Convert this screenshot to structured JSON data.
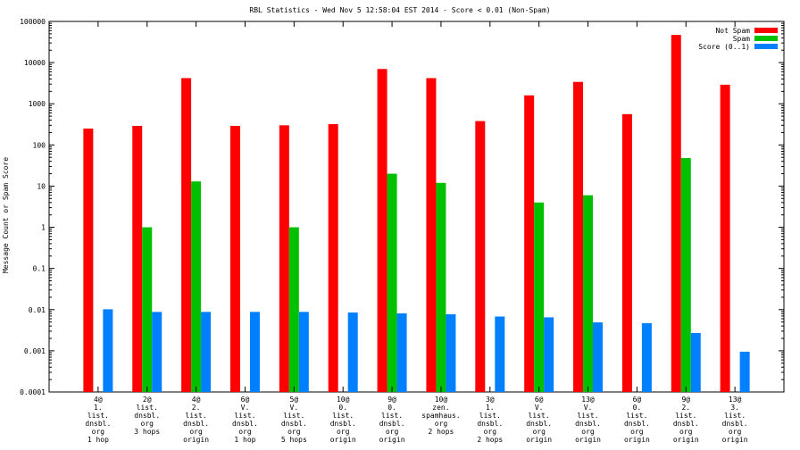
{
  "chart_data": {
    "type": "bar",
    "title": "RBL Statistics - Wed Nov  5 12:58:04 EST 2014 - Score < 0.01 (Non-Spam)",
    "xlabel": "",
    "ylabel": "Message Count or Spam Score",
    "yscale": "log",
    "ylim": [
      0.0001,
      100000
    ],
    "yticks": [
      "100000",
      "10000",
      "1000",
      "100",
      "10",
      "1",
      "0.1",
      "0.01",
      "0.001",
      "0.0001"
    ],
    "legend_position": "top-right",
    "categories": [
      [
        "4@",
        "1.",
        "list.",
        "dnsbl.",
        "org",
        "1 hop"
      ],
      [
        "2@",
        "list.",
        "dnsbl.",
        "org",
        "3 hops"
      ],
      [
        "4@",
        "2.",
        "list.",
        "dnsbl.",
        "org",
        "origin"
      ],
      [
        "6@",
        "V.",
        "list.",
        "dnsbl.",
        "org",
        "1 hop"
      ],
      [
        "5@",
        "V.",
        "list.",
        "dnsbl.",
        "org",
        "5 hops"
      ],
      [
        "10@",
        "0.",
        "list.",
        "dnsbl.",
        "org",
        "origin"
      ],
      [
        "9@",
        "0.",
        "list.",
        "dnsbl.",
        "org",
        "origin"
      ],
      [
        "10@",
        "zen.",
        "spamhaus.",
        "org",
        "2 hops"
      ],
      [
        "3@",
        "1.",
        "list.",
        "dnsbl.",
        "org",
        "2 hops"
      ],
      [
        "6@",
        "V.",
        "list.",
        "dnsbl.",
        "org",
        "origin"
      ],
      [
        "13@",
        "V.",
        "list.",
        "dnsbl.",
        "org",
        "origin"
      ],
      [
        "6@",
        "0.",
        "list.",
        "dnsbl.",
        "org",
        "origin"
      ],
      [
        "9@",
        "2.",
        "list.",
        "dnsbl.",
        "org",
        "origin"
      ],
      [
        "13@",
        "3.",
        "list.",
        "dnsbl.",
        "org",
        "origin"
      ]
    ],
    "series": [
      {
        "name": "Not Spam",
        "color": "#ff0000",
        "values": [
          250,
          290,
          4200,
          290,
          300,
          320,
          7000,
          4200,
          380,
          1600,
          3400,
          560,
          47000,
          2900
        ]
      },
      {
        "name": "Spam",
        "color": "#00c000",
        "values": [
          null,
          1,
          13,
          null,
          1,
          null,
          20,
          12,
          null,
          4,
          6,
          null,
          48,
          null
        ]
      },
      {
        "name": "Score (0..1)",
        "color": "#0080ff",
        "values": [
          0.0102,
          0.0088,
          0.0088,
          0.0088,
          0.0088,
          0.0085,
          0.0081,
          0.0077,
          0.0068,
          0.0065,
          0.0049,
          0.0047,
          0.0027,
          0.00095
        ]
      }
    ]
  }
}
